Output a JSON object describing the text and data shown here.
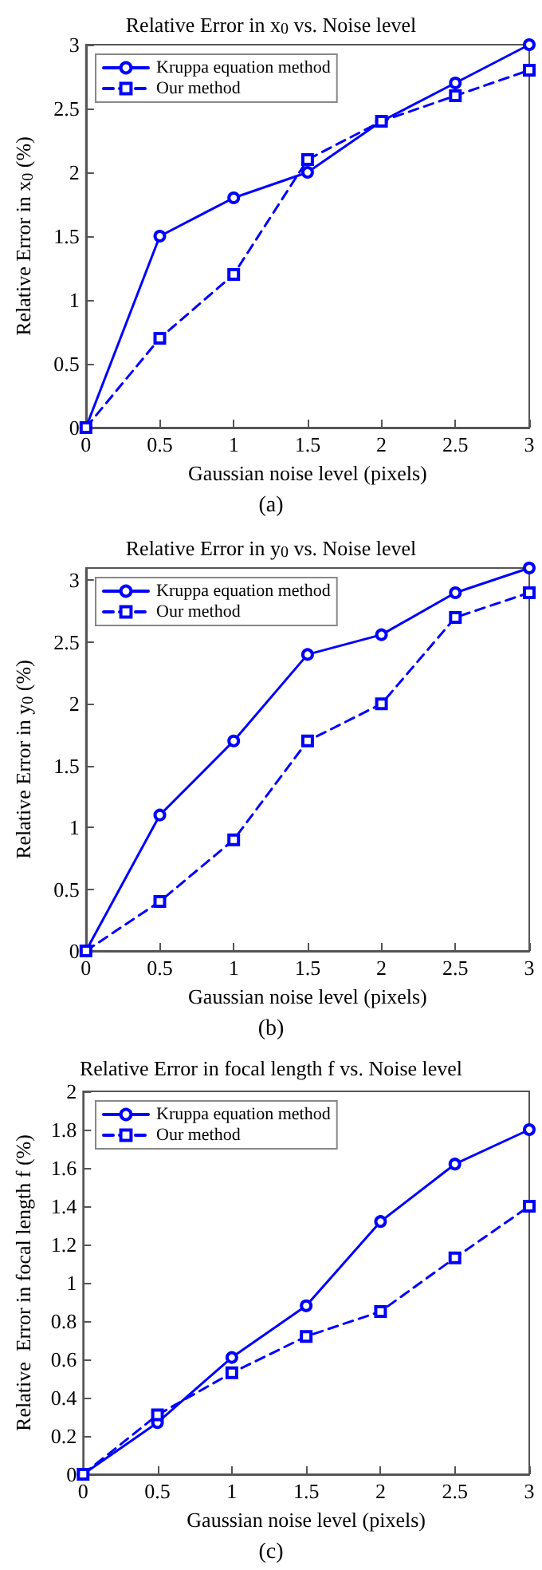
{
  "chart_data": [
    {
      "type": "line",
      "title": "Relative Error in x$_{0}$ vs. Noise level",
      "xlabel": "Gaussian noise level (pixels)",
      "ylabel": "Relative Error in x$_{0}$ (%)",
      "annotations": [
        "(a)"
      ],
      "x": [
        0,
        0.5,
        1,
        1.5,
        2,
        2.5,
        3
      ],
      "series": [
        {
          "name": "Kruppa equation method",
          "color": "#0000ff",
          "marker": "circle",
          "line_style": "solid",
          "values": [
            0,
            1.5,
            1.8,
            2.0,
            2.4,
            2.7,
            3.0
          ]
        },
        {
          "name": "Our method",
          "color": "#0000ff",
          "marker": "square",
          "line_style": "dashed",
          "values": [
            0,
            0.7,
            1.2,
            2.1,
            2.4,
            2.6,
            2.8
          ]
        }
      ],
      "xlim": [
        0,
        3
      ],
      "xticks": [
        0,
        0.5,
        1,
        1.5,
        2,
        2.5,
        3
      ],
      "ylim": [
        0,
        3
      ],
      "yticks": [
        0,
        0.5,
        1,
        1.5,
        2,
        2.5,
        3
      ],
      "grid": false,
      "legend": "top left"
    },
    {
      "type": "line",
      "title": "Relative Error in y$_{0}$ vs. Noise level",
      "xlabel": "Gaussian noise level (pixels)",
      "ylabel": "Relative Error in y$_{0}$ (%)",
      "annotations": [
        "(b)"
      ],
      "x": [
        0,
        0.5,
        1,
        1.5,
        2,
        2.5,
        3
      ],
      "series": [
        {
          "name": "Kruppa equation method",
          "color": "#0000ff",
          "marker": "circle",
          "line_style": "solid",
          "values": [
            0,
            1.1,
            1.7,
            2.4,
            2.56,
            2.9,
            3.1
          ]
        },
        {
          "name": "Our method",
          "color": "#0000ff",
          "marker": "square",
          "line_style": "dashed",
          "values": [
            0,
            0.4,
            0.9,
            1.7,
            2.0,
            2.7,
            2.9
          ]
        }
      ],
      "xlim": [
        0,
        3
      ],
      "xticks": [
        0,
        0.5,
        1,
        1.5,
        2,
        2.5,
        3
      ],
      "ylim": [
        0,
        3.1
      ],
      "yticks": [
        0,
        0.5,
        1,
        1.5,
        2,
        2.5,
        3
      ],
      "grid": false,
      "legend": "top left"
    },
    {
      "type": "line",
      "title": "Relative Error in focal length f vs. Noise level",
      "xlabel": "Gaussian noise level (pixels)",
      "ylabel": "Relative  Error in focal length f (%)",
      "annotations": [
        "(c)"
      ],
      "x": [
        0,
        0.5,
        1,
        1.5,
        2,
        2.5,
        3
      ],
      "series": [
        {
          "name": "Kruppa equation method",
          "color": "#0000ff",
          "marker": "circle",
          "line_style": "solid",
          "values": [
            0,
            0.27,
            0.61,
            0.88,
            1.32,
            1.62,
            1.8
          ]
        },
        {
          "name": "Our method",
          "color": "#0000ff",
          "marker": "square",
          "line_style": "dashed",
          "values": [
            0,
            0.31,
            0.53,
            0.72,
            0.85,
            1.13,
            1.4
          ]
        }
      ],
      "xlim": [
        0,
        3
      ],
      "xticks": [
        0,
        0.5,
        1,
        1.5,
        2,
        2.5,
        3
      ],
      "ylim": [
        0,
        2
      ],
      "yticks": [
        0,
        0.2,
        0.4,
        0.6,
        0.8,
        1,
        1.2,
        1.4,
        1.6,
        1.8,
        2
      ],
      "grid": false,
      "legend": "top left"
    }
  ]
}
